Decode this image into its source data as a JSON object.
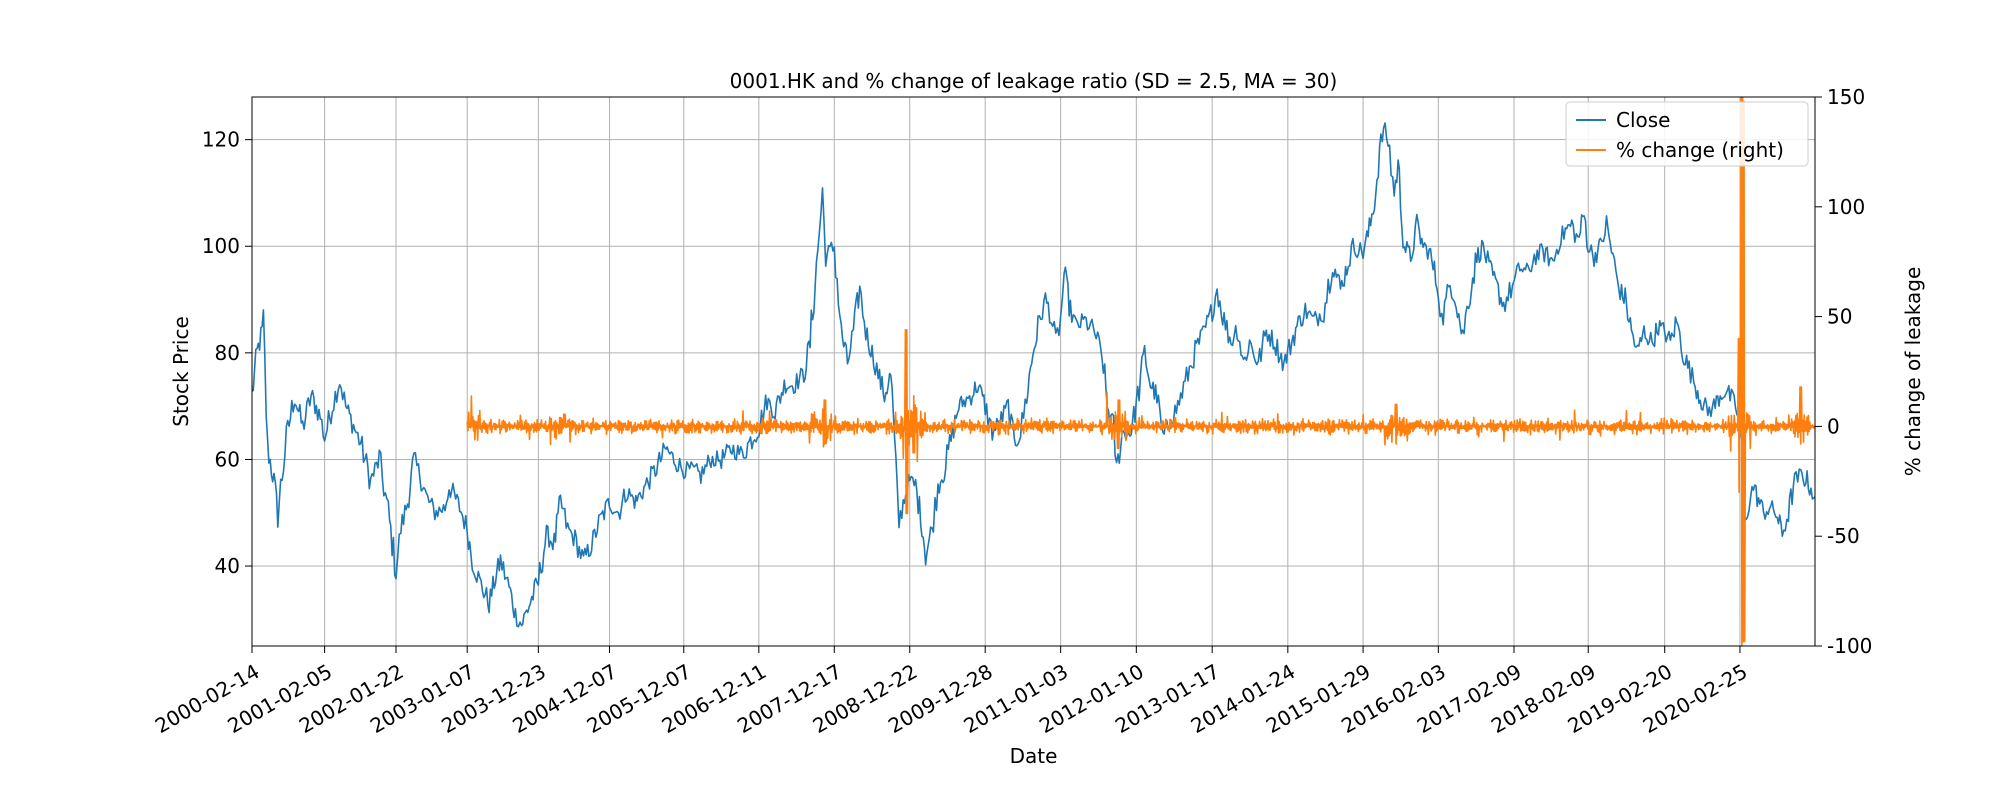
{
  "chart_data": {
    "type": "line",
    "title": "0001.HK and % change of leakage ratio (SD = 2.5, MA = 30)",
    "xlabel": "Date",
    "ylabel": "Stock Price",
    "ylabel_right": "% change of leakage",
    "xlim": [
      "2000-02-14",
      "2021-02-28"
    ],
    "ylim": [
      25,
      128
    ],
    "ylim_right": [
      -100,
      150
    ],
    "x_ticks": [
      "2000-02-14",
      "2001-02-05",
      "2002-01-22",
      "2003-01-07",
      "2003-12-23",
      "2004-12-07",
      "2005-12-07",
      "2006-12-11",
      "2007-12-17",
      "2008-12-22",
      "2009-12-28",
      "2011-01-03",
      "2012-01-10",
      "2013-01-17",
      "2014-01-24",
      "2015-01-29",
      "2016-02-03",
      "2017-02-09",
      "2018-02-09",
      "2019-02-20",
      "2020-02-25"
    ],
    "y_ticks": [
      40,
      60,
      80,
      100,
      120
    ],
    "y_ticks_right": [
      -100,
      -50,
      0,
      50,
      100,
      150
    ],
    "grid": true,
    "legend": {
      "position": "top-right",
      "entries": [
        "Close",
        "% change (right)"
      ]
    },
    "colors": {
      "close": "#1f77b4",
      "pct": "#ff7f0e"
    },
    "series": [
      {
        "name": "Close",
        "axis": "left",
        "color": "#1f77b4",
        "points": [
          [
            "2000-02-14",
            72
          ],
          [
            "2000-03-10",
            80
          ],
          [
            "2000-04-10",
            85
          ],
          [
            "2000-05-01",
            62
          ],
          [
            "2000-06-01",
            56
          ],
          [
            "2000-06-20",
            50
          ],
          [
            "2000-08-01",
            64
          ],
          [
            "2000-09-10",
            72
          ],
          [
            "2000-10-20",
            66
          ],
          [
            "2000-12-01",
            72
          ],
          [
            "2001-01-15",
            68
          ],
          [
            "2001-02-05",
            64
          ],
          [
            "2001-03-15",
            70
          ],
          [
            "2001-04-20",
            75
          ],
          [
            "2001-05-20",
            70
          ],
          [
            "2001-06-20",
            67
          ],
          [
            "2001-08-01",
            63
          ],
          [
            "2001-09-20",
            56
          ],
          [
            "2001-11-01",
            60
          ],
          [
            "2001-12-15",
            50
          ],
          [
            "2002-01-22",
            39
          ],
          [
            "2002-02-15",
            47
          ],
          [
            "2002-03-20",
            52
          ],
          [
            "2002-04-20",
            60
          ],
          [
            "2002-05-20",
            57
          ],
          [
            "2002-06-20",
            53
          ],
          [
            "2002-08-01",
            50
          ],
          [
            "2002-09-20",
            51
          ],
          [
            "2002-10-10",
            55
          ],
          [
            "2002-12-01",
            51
          ],
          [
            "2003-01-07",
            47
          ],
          [
            "2003-02-01",
            41
          ],
          [
            "2003-03-10",
            37
          ],
          [
            "2003-04-25",
            33
          ],
          [
            "2003-05-20",
            37
          ],
          [
            "2003-06-20",
            41
          ],
          [
            "2003-08-01",
            36
          ],
          [
            "2003-09-01",
            31
          ],
          [
            "2003-10-01",
            29
          ],
          [
            "2003-11-01",
            32
          ],
          [
            "2003-12-23",
            37
          ],
          [
            "2004-02-01",
            46
          ],
          [
            "2004-03-10",
            44
          ],
          [
            "2004-04-10",
            52
          ],
          [
            "2004-05-15",
            47
          ],
          [
            "2004-06-20",
            45
          ],
          [
            "2004-08-01",
            41
          ],
          [
            "2004-09-10",
            44
          ],
          [
            "2004-10-15",
            48
          ],
          [
            "2004-12-07",
            52
          ],
          [
            "2005-01-20",
            50
          ],
          [
            "2005-03-01",
            54
          ],
          [
            "2005-04-15",
            52
          ],
          [
            "2005-06-01",
            55
          ],
          [
            "2005-07-20",
            58
          ],
          [
            "2005-09-10",
            62
          ],
          [
            "2005-10-20",
            60
          ],
          [
            "2005-12-07",
            58
          ],
          [
            "2006-01-20",
            58
          ],
          [
            "2006-03-01",
            57
          ],
          [
            "2006-04-20",
            60
          ],
          [
            "2006-06-10",
            60
          ],
          [
            "2006-08-01",
            62
          ],
          [
            "2006-09-20",
            61
          ],
          [
            "2006-12-11",
            66
          ],
          [
            "2007-01-20",
            71
          ],
          [
            "2007-03-01",
            69
          ],
          [
            "2007-04-15",
            74
          ],
          [
            "2007-06-01",
            74
          ],
          [
            "2007-07-20",
            76
          ],
          [
            "2007-08-20",
            82
          ],
          [
            "2007-09-20",
            96
          ],
          [
            "2007-10-20",
            110
          ],
          [
            "2007-11-05",
            98
          ],
          [
            "2007-12-17",
            100
          ],
          [
            "2008-01-20",
            84
          ],
          [
            "2008-02-20",
            78
          ],
          [
            "2008-03-20",
            84
          ],
          [
            "2008-04-20",
            92
          ],
          [
            "2008-05-20",
            84
          ],
          [
            "2008-06-20",
            80
          ],
          [
            "2008-07-20",
            76
          ],
          [
            "2008-08-20",
            72
          ],
          [
            "2008-09-20",
            76
          ],
          [
            "2008-10-15",
            58
          ],
          [
            "2008-10-30",
            48
          ],
          [
            "2008-11-20",
            52
          ],
          [
            "2008-12-22",
            56
          ],
          [
            "2009-01-20",
            55
          ],
          [
            "2009-02-20",
            48
          ],
          [
            "2009-03-10",
            42
          ],
          [
            "2009-04-10",
            47
          ],
          [
            "2009-05-10",
            55
          ],
          [
            "2009-06-10",
            58
          ],
          [
            "2009-07-20",
            65
          ],
          [
            "2009-08-20",
            70
          ],
          [
            "2009-09-20",
            71
          ],
          [
            "2009-10-20",
            72
          ],
          [
            "2009-11-20",
            74
          ],
          [
            "2009-12-28",
            70
          ],
          [
            "2010-02-01",
            65
          ],
          [
            "2010-03-10",
            67
          ],
          [
            "2010-04-20",
            70
          ],
          [
            "2010-05-20",
            63
          ],
          [
            "2010-06-20",
            65
          ],
          [
            "2010-07-20",
            72
          ],
          [
            "2010-08-20",
            80
          ],
          [
            "2010-09-20",
            86
          ],
          [
            "2010-10-20",
            90
          ],
          [
            "2010-11-10",
            88
          ],
          [
            "2010-12-10",
            82
          ],
          [
            "2011-01-03",
            86
          ],
          [
            "2011-01-20",
            95
          ],
          [
            "2011-02-20",
            88
          ],
          [
            "2011-03-20",
            85
          ],
          [
            "2011-05-01",
            86
          ],
          [
            "2011-06-20",
            84
          ],
          [
            "2011-08-01",
            78
          ],
          [
            "2011-08-20",
            70
          ],
          [
            "2011-09-20",
            66
          ],
          [
            "2011-10-05",
            58
          ],
          [
            "2011-11-01",
            65
          ],
          [
            "2011-12-10",
            65
          ],
          [
            "2012-01-10",
            70
          ],
          [
            "2012-02-20",
            80
          ],
          [
            "2012-03-20",
            74
          ],
          [
            "2012-04-20",
            72
          ],
          [
            "2012-05-20",
            64
          ],
          [
            "2012-06-20",
            67
          ],
          [
            "2012-08-01",
            70
          ],
          [
            "2012-09-20",
            76
          ],
          [
            "2012-11-01",
            81
          ],
          [
            "2012-12-10",
            84
          ],
          [
            "2013-01-17",
            88
          ],
          [
            "2013-02-10",
            92
          ],
          [
            "2013-03-10",
            87
          ],
          [
            "2013-04-20",
            82
          ],
          [
            "2013-05-20",
            85
          ],
          [
            "2013-06-20",
            78
          ],
          [
            "2013-07-20",
            82
          ],
          [
            "2013-09-01",
            78
          ],
          [
            "2013-10-10",
            84
          ],
          [
            "2013-11-20",
            82
          ],
          [
            "2014-01-05",
            78
          ],
          [
            "2014-01-24",
            80
          ],
          [
            "2014-03-10",
            85
          ],
          [
            "2014-04-20",
            88
          ],
          [
            "2014-06-01",
            86
          ],
          [
            "2014-07-20",
            88
          ],
          [
            "2014-09-01",
            97
          ],
          [
            "2014-10-10",
            92
          ],
          [
            "2014-11-10",
            96
          ],
          [
            "2014-12-10",
            100
          ],
          [
            "2015-01-29",
            99
          ],
          [
            "2015-03-01",
            103
          ],
          [
            "2015-04-01",
            110
          ],
          [
            "2015-04-20",
            118
          ],
          [
            "2015-05-10",
            122
          ],
          [
            "2015-06-01",
            120
          ],
          [
            "2015-07-01",
            110
          ],
          [
            "2015-07-20",
            115
          ],
          [
            "2015-08-20",
            100
          ],
          [
            "2015-09-20",
            98
          ],
          [
            "2015-10-20",
            104
          ],
          [
            "2015-11-20",
            100
          ],
          [
            "2015-12-20",
            99
          ],
          [
            "2016-02-03",
            92
          ],
          [
            "2016-02-20",
            86
          ],
          [
            "2016-04-01",
            93
          ],
          [
            "2016-05-01",
            90
          ],
          [
            "2016-06-01",
            83
          ],
          [
            "2016-07-01",
            90
          ],
          [
            "2016-08-10",
            98
          ],
          [
            "2016-09-10",
            100
          ],
          [
            "2016-10-10",
            96
          ],
          [
            "2016-11-10",
            93
          ],
          [
            "2016-12-20",
            89
          ],
          [
            "2017-02-09",
            93
          ],
          [
            "2017-03-10",
            96
          ],
          [
            "2017-04-20",
            95
          ],
          [
            "2017-05-20",
            98
          ],
          [
            "2017-07-01",
            99
          ],
          [
            "2017-08-20",
            97
          ],
          [
            "2017-09-20",
            101
          ],
          [
            "2017-10-20",
            103
          ],
          [
            "2017-11-20",
            104
          ],
          [
            "2017-12-20",
            101
          ],
          [
            "2018-01-20",
            106
          ],
          [
            "2018-02-09",
            100
          ],
          [
            "2018-03-10",
            98
          ],
          [
            "2018-04-10",
            100
          ],
          [
            "2018-05-10",
            104
          ],
          [
            "2018-06-10",
            98
          ],
          [
            "2018-07-10",
            92
          ],
          [
            "2018-08-10",
            90
          ],
          [
            "2018-09-10",
            84
          ],
          [
            "2018-10-10",
            80
          ],
          [
            "2018-11-10",
            84
          ],
          [
            "2018-12-20",
            82
          ],
          [
            "2019-01-20",
            85
          ],
          [
            "2019-02-20",
            84
          ],
          [
            "2019-03-20",
            82
          ],
          [
            "2019-04-20",
            86
          ],
          [
            "2019-05-20",
            80
          ],
          [
            "2019-06-20",
            77
          ],
          [
            "2019-07-20",
            74
          ],
          [
            "2019-08-20",
            71
          ],
          [
            "2019-09-20",
            69
          ],
          [
            "2019-10-20",
            70
          ],
          [
            "2019-11-20",
            72
          ],
          [
            "2019-12-20",
            73
          ],
          [
            "2020-01-20",
            71
          ],
          [
            "2020-02-25",
            68
          ],
          [
            "2020-03-10",
            60
          ],
          [
            "2020-03-20",
            48
          ],
          [
            "2020-04-10",
            52
          ],
          [
            "2020-05-01",
            55
          ],
          [
            "2020-05-20",
            53
          ],
          [
            "2020-06-20",
            50
          ],
          [
            "2020-07-20",
            51
          ],
          [
            "2020-08-20",
            50
          ],
          [
            "2020-09-20",
            46
          ],
          [
            "2020-10-20",
            50
          ],
          [
            "2020-11-20",
            56
          ],
          [
            "2020-12-20",
            57
          ],
          [
            "2021-01-20",
            56
          ],
          [
            "2021-02-28",
            53
          ]
        ]
      },
      {
        "name": "% change (right)",
        "axis": "right",
        "color": "#ff7f0e",
        "start": "2003-01-07",
        "baseline": 0,
        "events": [
          [
            "2003-01-07",
            2,
            -2
          ],
          [
            "2004-04-10",
            4,
            -3
          ],
          [
            "2007-11-01",
            12,
            -8
          ],
          [
            "2008-12-05",
            20,
            -18
          ],
          [
            "2009-01-10",
            14,
            -12
          ],
          [
            "2011-10-15",
            12,
            -10
          ],
          [
            "2015-07-10",
            10,
            -8
          ],
          [
            "2020-02-20",
            40,
            -30
          ],
          [
            "2020-03-05",
            150,
            -100
          ],
          [
            "2020-03-15",
            148,
            -98
          ],
          [
            "2020-12-20",
            18,
            -8
          ]
        ]
      }
    ]
  }
}
